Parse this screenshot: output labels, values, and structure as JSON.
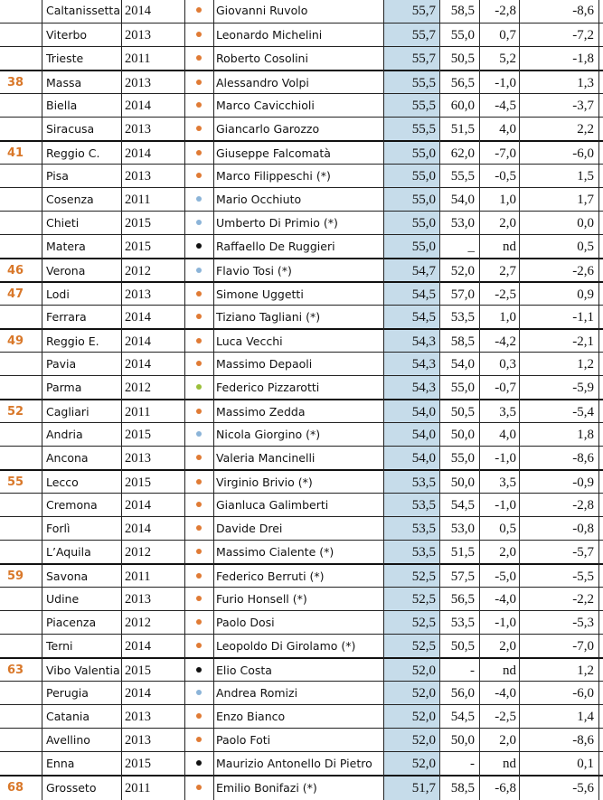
{
  "colors": {
    "rank": "#d9782a",
    "highlight_column": "#c6dcea",
    "dot_orange": "#e07b35",
    "dot_blue": "#8cb4d8",
    "dot_black": "#111111",
    "dot_green": "#9bbf3a"
  },
  "rows": [
    {
      "rank": "",
      "city": "Caltanissetta",
      "year": "2014",
      "dot": "orange",
      "name": "Giovanni Ruvolo",
      "v1": "55,7",
      "v2": "58,5",
      "v3": "-2,8",
      "v4": "-8,6"
    },
    {
      "rank": "",
      "city": "Viterbo",
      "year": "2013",
      "dot": "orange",
      "name": "Leonardo Michelini",
      "v1": "55,7",
      "v2": "55,0",
      "v3": "0,7",
      "v4": "-7,2"
    },
    {
      "rank": "",
      "city": "Trieste",
      "year": "2011",
      "dot": "orange",
      "name": "Roberto Cosolini",
      "v1": "55,7",
      "v2": "50,5",
      "v3": "5,2",
      "v4": "-1,8"
    },
    {
      "rank": "38",
      "city": "Massa",
      "year": "2013",
      "dot": "orange",
      "name": "Alessandro Volpi",
      "v1": "55,5",
      "v2": "56,5",
      "v3": "-1,0",
      "v4": "1,3"
    },
    {
      "rank": "",
      "city": "Biella",
      "year": "2014",
      "dot": "orange",
      "name": "Marco Cavicchioli",
      "v1": "55,5",
      "v2": "60,0",
      "v3": "-4,5",
      "v4": "-3,7"
    },
    {
      "rank": "",
      "city": "Siracusa",
      "year": "2013",
      "dot": "orange",
      "name": "Giancarlo Garozzo",
      "v1": "55,5",
      "v2": "51,5",
      "v3": "4,0",
      "v4": "2,2"
    },
    {
      "rank": "41",
      "city": "Reggio C.",
      "year": "2014",
      "dot": "orange",
      "name": "Giuseppe Falcomatà",
      "v1": "55,0",
      "v2": "62,0",
      "v3": "-7,0",
      "v4": "-6,0"
    },
    {
      "rank": "",
      "city": "Pisa",
      "year": "2013",
      "dot": "orange",
      "name": "Marco Filippeschi (*)",
      "v1": "55,0",
      "v2": "55,5",
      "v3": "-0,5",
      "v4": "1,5"
    },
    {
      "rank": "",
      "city": "Cosenza",
      "year": "2011",
      "dot": "blue",
      "name": "Mario Occhiuto",
      "v1": "55,0",
      "v2": "54,0",
      "v3": "1,0",
      "v4": "1,7"
    },
    {
      "rank": "",
      "city": "Chieti",
      "year": "2015",
      "dot": "blue",
      "name": "Umberto Di Primio (*)",
      "v1": "55,0",
      "v2": "53,0",
      "v3": "2,0",
      "v4": "0,0"
    },
    {
      "rank": "",
      "city": "Matera",
      "year": "2015",
      "dot": "black",
      "name": "Raffaello De Ruggieri",
      "v1": "55,0",
      "v2": "_",
      "v3": "nd",
      "v4": "0,5"
    },
    {
      "rank": "46",
      "city": "Verona",
      "year": "2012",
      "dot": "blue",
      "name": "Flavio Tosi (*)",
      "v1": "54,7",
      "v2": "52,0",
      "v3": "2,7",
      "v4": "-2,6"
    },
    {
      "rank": "47",
      "city": "Lodi",
      "year": "2013",
      "dot": "orange",
      "name": "Simone Uggetti",
      "v1": "54,5",
      "v2": "57,0",
      "v3": "-2,5",
      "v4": "0,9"
    },
    {
      "rank": "",
      "city": "Ferrara",
      "year": "2014",
      "dot": "orange",
      "name": "Tiziano Tagliani (*)",
      "v1": "54,5",
      "v2": "53,5",
      "v3": "1,0",
      "v4": "-1,1"
    },
    {
      "rank": "49",
      "city": "Reggio E.",
      "year": "2014",
      "dot": "orange",
      "name": "Luca Vecchi",
      "v1": "54,3",
      "v2": "58,5",
      "v3": "-4,2",
      "v4": "-2,1"
    },
    {
      "rank": "",
      "city": "Pavia",
      "year": "2014",
      "dot": "orange",
      "name": "Massimo Depaoli",
      "v1": "54,3",
      "v2": "54,0",
      "v3": "0,3",
      "v4": "1,2"
    },
    {
      "rank": "",
      "city": "Parma",
      "year": "2012",
      "dot": "green",
      "name": "Federico Pizzarotti",
      "v1": "54,3",
      "v2": "55,0",
      "v3": "-0,7",
      "v4": "-5,9"
    },
    {
      "rank": "52",
      "city": "Cagliari",
      "year": "2011",
      "dot": "orange",
      "name": "Massimo Zedda",
      "v1": "54,0",
      "v2": "50,5",
      "v3": "3,5",
      "v4": "-5,4"
    },
    {
      "rank": "",
      "city": "Andria",
      "year": "2015",
      "dot": "blue",
      "name": "Nicola Giorgino (*)",
      "v1": "54,0",
      "v2": "50,0",
      "v3": "4,0",
      "v4": "1,8"
    },
    {
      "rank": "",
      "city": "Ancona",
      "year": "2013",
      "dot": "orange",
      "name": "Valeria Mancinelli",
      "v1": "54,0",
      "v2": "55,0",
      "v3": "-1,0",
      "v4": "-8,6"
    },
    {
      "rank": "55",
      "city": "Lecco",
      "year": "2015",
      "dot": "orange",
      "name": "Virginio Brivio (*)",
      "v1": "53,5",
      "v2": "50,0",
      "v3": "3,5",
      "v4": "-0,9"
    },
    {
      "rank": "",
      "city": "Cremona",
      "year": "2014",
      "dot": "orange",
      "name": "Gianluca Galimberti",
      "v1": "53,5",
      "v2": "54,5",
      "v3": "-1,0",
      "v4": "-2,8"
    },
    {
      "rank": "",
      "city": "Forlì",
      "year": "2014",
      "dot": "orange",
      "name": "Davide Drei",
      "v1": "53,5",
      "v2": "53,0",
      "v3": "0,5",
      "v4": "-0,8"
    },
    {
      "rank": "",
      "city": "L’Aquila",
      "year": "2012",
      "dot": "orange",
      "name": "Massimo Cialente (*)",
      "v1": "53,5",
      "v2": "51,5",
      "v3": "2,0",
      "v4": "-5,7"
    },
    {
      "rank": "59",
      "city": "Savona",
      "year": "2011",
      "dot": "orange",
      "name": "Federico Berruti (*)",
      "v1": "52,5",
      "v2": "57,5",
      "v3": "-5,0",
      "v4": "-5,5"
    },
    {
      "rank": "",
      "city": "Udine",
      "year": "2013",
      "dot": "orange",
      "name": "Furio Honsell (*)",
      "v1": "52,5",
      "v2": "56,5",
      "v3": "-4,0",
      "v4": "-2,2"
    },
    {
      "rank": "",
      "city": "Piacenza",
      "year": "2012",
      "dot": "orange",
      "name": "Paolo Dosi",
      "v1": "52,5",
      "v2": "53,5",
      "v3": "-1,0",
      "v4": "-5,3"
    },
    {
      "rank": "",
      "city": "Terni",
      "year": "2014",
      "dot": "orange",
      "name": "Leopoldo Di Girolamo (*)",
      "v1": "52,5",
      "v2": "50,5",
      "v3": "2,0",
      "v4": "-7,0"
    },
    {
      "rank": "63",
      "city": "Vibo Valentia",
      "year": "2015",
      "dot": "black",
      "name": "Elio Costa",
      "v1": "52,0",
      "v2": "-",
      "v3": "nd",
      "v4": "1,2"
    },
    {
      "rank": "",
      "city": "Perugia",
      "year": "2014",
      "dot": "blue",
      "name": "Andrea Romizi",
      "v1": "52,0",
      "v2": "56,0",
      "v3": "-4,0",
      "v4": "-6,0"
    },
    {
      "rank": "",
      "city": "Catania",
      "year": "2013",
      "dot": "orange",
      "name": "Enzo Bianco",
      "v1": "52,0",
      "v2": "54,5",
      "v3": "-2,5",
      "v4": "1,4"
    },
    {
      "rank": "",
      "city": "Avellino",
      "year": "2013",
      "dot": "orange",
      "name": "Paolo Foti",
      "v1": "52,0",
      "v2": "50,0",
      "v3": "2,0",
      "v4": "-8,6"
    },
    {
      "rank": "",
      "city": "Enna",
      "year": "2015",
      "dot": "black",
      "name": "Maurizio Antonello Di Pietro",
      "v1": "52,0",
      "v2": "-",
      "v3": "nd",
      "v4": "0,1"
    },
    {
      "rank": "68",
      "city": "Grosseto",
      "year": "2011",
      "dot": "orange",
      "name": "Emilio Bonifazi (*)",
      "v1": "51,7",
      "v2": "58,5",
      "v3": "-6,8",
      "v4": "-5,6"
    }
  ]
}
